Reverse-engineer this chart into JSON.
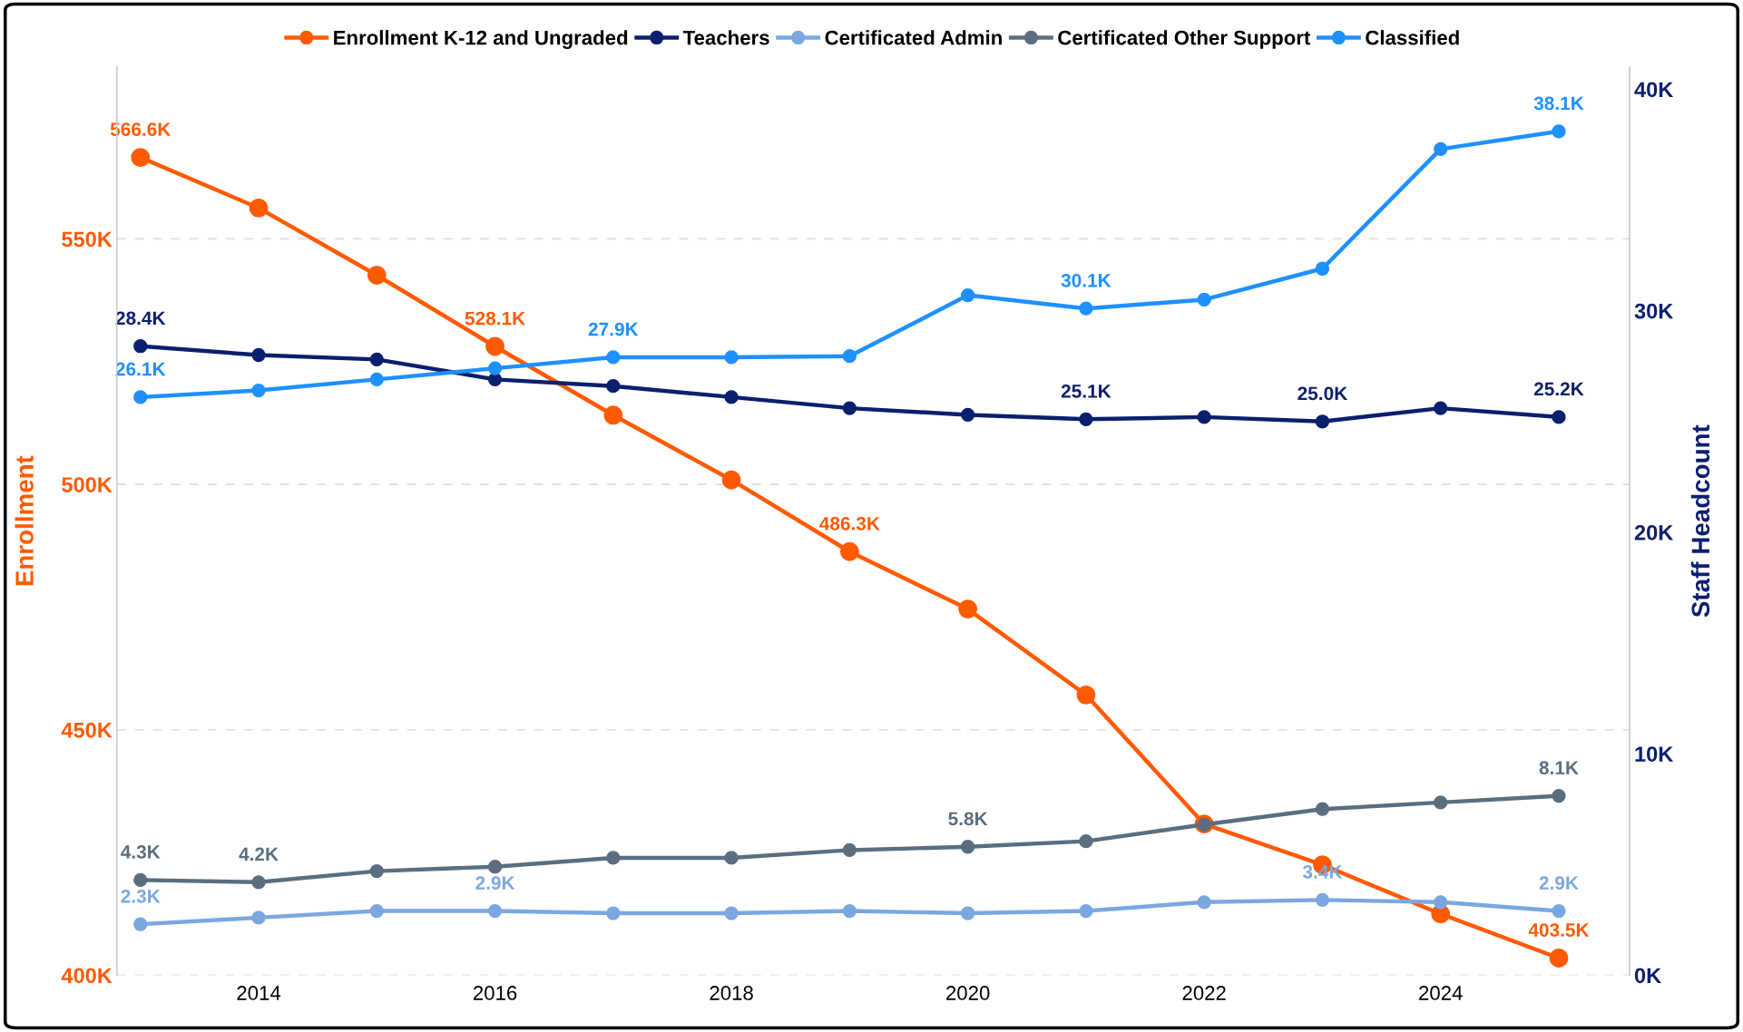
{
  "chart_data": {
    "type": "line",
    "ylabel": "Enrollment",
    "y2label": "Staff Headcount",
    "x": [
      2013,
      2014,
      2015,
      2016,
      2017,
      2018,
      2019,
      2020,
      2021,
      2022,
      2023,
      2024,
      2025
    ],
    "xlim": [
      2012.8,
      2025.6
    ],
    "xticks": [
      2014,
      2016,
      2018,
      2020,
      2022,
      2024
    ],
    "ylim": [
      400000,
      585000
    ],
    "yticks": [
      {
        "value": 400000,
        "label": "400K"
      },
      {
        "value": 450000,
        "label": "450K"
      },
      {
        "value": 500000,
        "label": "500K"
      },
      {
        "value": 550000,
        "label": "550K"
      }
    ],
    "y2lim": [
      0,
      41000
    ],
    "y2ticks": [
      {
        "value": 0,
        "label": "0K"
      },
      {
        "value": 10000,
        "label": "10K"
      },
      {
        "value": 20000,
        "label": "20K"
      },
      {
        "value": 30000,
        "label": "30K"
      },
      {
        "value": 40000,
        "label": "40K"
      }
    ],
    "grid": "y",
    "legend": "top",
    "marker": "circle",
    "line_style": "solid",
    "series": [
      {
        "name": "Enrollment K-12 and Ungraded",
        "color": "#ff5a00",
        "values": [
          566600,
          556300,
          542600,
          528100,
          514100,
          500900,
          486300,
          474600,
          457100,
          430800,
          422500,
          412500,
          403500
        ],
        "value_labels": [
          "566.6K",
          null,
          null,
          "528.1K",
          null,
          null,
          "486.3K",
          null,
          null,
          null,
          null,
          null,
          "403.5K"
        ]
      },
      {
        "name": "Teachers",
        "color": "#0a1f6e",
        "axis": "y2",
        "values": [
          28400,
          28000,
          27800,
          26900,
          26600,
          26100,
          25600,
          25300,
          25100,
          25200,
          25000,
          25600,
          25200
        ],
        "value_labels": [
          "28.4K",
          null,
          null,
          null,
          null,
          null,
          null,
          null,
          "25.1K",
          null,
          "25.0K",
          null,
          "25.2K"
        ]
      },
      {
        "name": "Certificated Admin",
        "color": "#7ba7e0",
        "axis": "y2",
        "values": [
          2300,
          2600,
          2900,
          2900,
          2800,
          2800,
          2900,
          2800,
          2900,
          3300,
          3400,
          3300,
          2900
        ],
        "value_labels": [
          "2.3K",
          null,
          null,
          "2.9K",
          null,
          null,
          null,
          null,
          null,
          null,
          "3.4K",
          null,
          "2.9K"
        ]
      },
      {
        "name": "Certificated Other Support",
        "color": "#5a6e80",
        "axis": "y2",
        "values": [
          4300,
          4200,
          4700,
          4900,
          5300,
          5300,
          5650,
          5800,
          6050,
          6800,
          7500,
          7800,
          8100
        ],
        "value_labels": [
          "4.3K",
          "4.2K",
          null,
          null,
          null,
          null,
          null,
          "5.8K",
          null,
          null,
          null,
          null,
          "8.1K"
        ]
      },
      {
        "name": "Classified",
        "color": "#1e90ff",
        "axis": "y2",
        "values": [
          26100,
          26400,
          26900,
          27400,
          27900,
          27900,
          27950,
          30700,
          30100,
          30500,
          31900,
          37300,
          38100
        ],
        "value_labels": [
          "26.1K",
          null,
          null,
          null,
          "27.9K",
          null,
          null,
          null,
          "30.1K",
          null,
          null,
          null,
          "38.1K"
        ]
      }
    ]
  }
}
